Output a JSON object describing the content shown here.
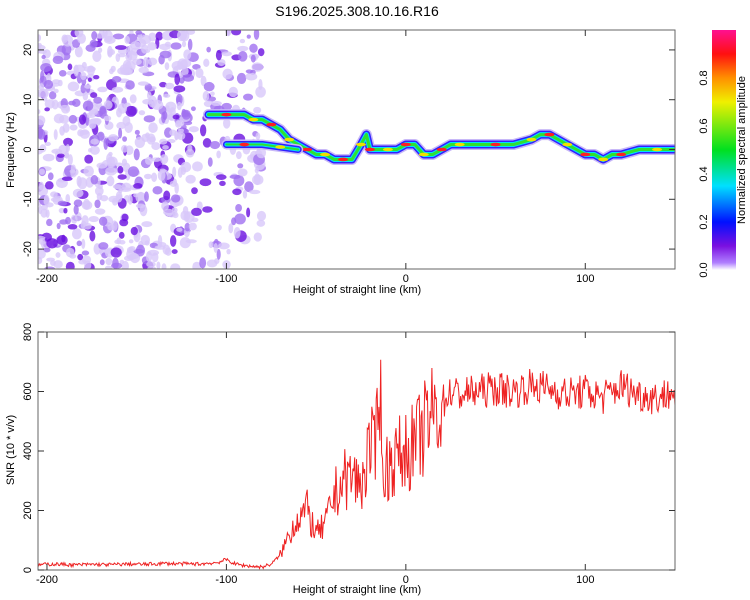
{
  "chart_data": [
    {
      "type": "heatmap",
      "title": "S196.2025.308.10.16.R16",
      "xlabel": "Height of straight line (km)",
      "ylabel": "Frequency (Hz)",
      "xlim": [
        -205,
        150
      ],
      "ylim": [
        -24,
        24
      ],
      "xticks": [
        -200,
        -100,
        0,
        100
      ],
      "yticks": [
        -20,
        -10,
        0,
        10,
        20
      ],
      "colorbar": {
        "label": "Normalized spectral amplitude",
        "range": [
          0,
          1
        ],
        "ticks": [
          "0.0",
          "0.2",
          "0.4",
          "0.6",
          "0.8"
        ]
      },
      "ridge": {
        "x": [
          -110,
          -100,
          -90,
          -85,
          -80,
          -75,
          -70,
          -65,
          -60,
          -55,
          -50,
          -45,
          -40,
          -35,
          -30,
          -25,
          -22,
          -20,
          -15,
          -10,
          -5,
          0,
          5,
          10,
          15,
          20,
          25,
          30,
          40,
          50,
          60,
          70,
          75,
          80,
          85,
          90,
          95,
          100,
          105,
          110,
          115,
          120,
          130,
          140,
          150
        ],
        "y": [
          7,
          7,
          7,
          6,
          6,
          5,
          4,
          2,
          1,
          0,
          -1,
          -1,
          -2,
          -2,
          -2,
          1,
          3,
          0,
          0,
          0,
          0,
          1,
          1,
          -1,
          -1,
          0,
          1,
          1,
          1,
          1,
          1,
          2,
          3,
          3,
          2,
          1,
          0,
          -1,
          -1,
          -2,
          -1,
          -1,
          0,
          0,
          0
        ]
      },
      "lower_branch": {
        "x": [
          -100,
          -90,
          -80,
          -70,
          -60
        ],
        "y": [
          1,
          1,
          1,
          0.5,
          0
        ]
      },
      "noise_region_xlim": [
        -205,
        -80
      ]
    },
    {
      "type": "line",
      "xlabel": "Height of straight line (km)",
      "ylabel": "SNR (10 * v/v)",
      "xlim": [
        -205,
        150
      ],
      "ylim": [
        0,
        800
      ],
      "xticks": [
        -200,
        -100,
        0,
        100
      ],
      "yticks": [
        0,
        200,
        400,
        600,
        800
      ],
      "color": "#ee2222",
      "x": [
        -205,
        -195,
        -185,
        -175,
        -165,
        -155,
        -145,
        -135,
        -125,
        -115,
        -105,
        -100,
        -95,
        -90,
        -85,
        -80,
        -75,
        -70,
        -65,
        -60,
        -55,
        -50,
        -45,
        -40,
        -35,
        -30,
        -25,
        -20,
        -17,
        -15,
        -13,
        -10,
        -5,
        0,
        5,
        10,
        15,
        20,
        25,
        30,
        40,
        50,
        60,
        70,
        80,
        90,
        100,
        110,
        120,
        130,
        140,
        150
      ],
      "y": [
        18,
        20,
        17,
        19,
        18,
        20,
        19,
        22,
        21,
        20,
        25,
        35,
        20,
        15,
        12,
        10,
        20,
        50,
        120,
        180,
        200,
        120,
        150,
        250,
        300,
        320,
        280,
        420,
        380,
        770,
        320,
        350,
        380,
        400,
        420,
        470,
        520,
        560,
        600,
        590,
        600,
        610,
        600,
        620,
        610,
        590,
        600,
        580,
        620,
        590,
        580,
        600
      ]
    }
  ]
}
